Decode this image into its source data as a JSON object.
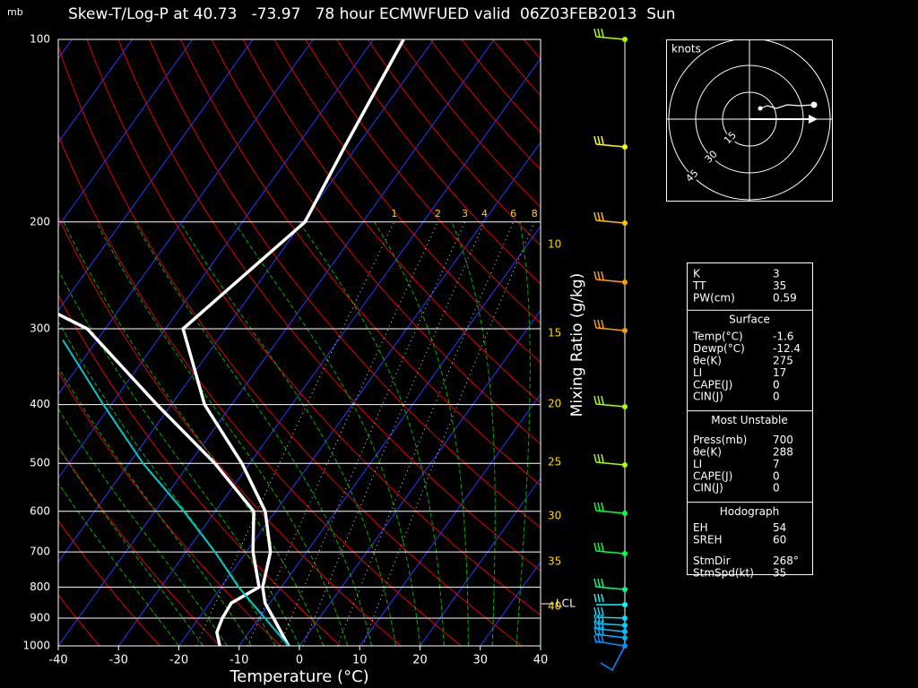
{
  "chart_data": {
    "type": "skewt",
    "title": "Skew-T/Log-P at 40.73   -73.97   78 hour ECMWFUED valid  06Z03FEB2013  Sun",
    "y_unit": "mb",
    "xlabel": "Temperature (°C)",
    "right_label": "Mixing Ratio (g/kg)",
    "xlim": [
      -40,
      40
    ],
    "xticks": [
      -40,
      -30,
      -20,
      -10,
      0,
      10,
      20,
      30,
      40
    ],
    "ylim": [
      1000,
      100
    ],
    "yticks": [
      1000,
      900,
      800,
      700,
      600,
      500,
      400,
      300,
      200,
      100
    ],
    "log_y": true,
    "grid": true,
    "mixing_ratios": [
      1,
      2,
      3,
      4,
      6,
      8
    ],
    "side_labels": [
      10,
      15,
      20,
      25,
      30,
      35,
      40
    ],
    "lcl_label": "LCL",
    "series": [
      {
        "color": "#ffffff",
        "pressure": [
          1000,
          900,
          850,
          800,
          700,
          600,
          500,
          400,
          300,
          200,
          150,
          100
        ],
        "temperature": [
          -1.8,
          -7.6,
          -10.8,
          -13.1,
          -16.0,
          -21.7,
          -31.3,
          -44.5,
          -57.1,
          -49.6,
          -52.0,
          -55.0
        ]
      },
      {
        "color": "#ffffff",
        "pressure": [
          1000,
          950,
          900,
          850,
          800,
          700,
          600,
          500,
          400,
          300,
          283
        ],
        "temperature": [
          -13.2,
          -15.3,
          -16.1,
          -16.4,
          -13.7,
          -18.9,
          -23.6,
          -35.8,
          -52.4,
          -73.0,
          -79.9
        ]
      },
      {
        "color": "#00c8c8",
        "pressure": [
          1000,
          800,
          700,
          600,
          500,
          400,
          313
        ],
        "temperature": [
          -1.8,
          -17.1,
          -25.2,
          -35.2,
          -47.7,
          -61.3,
          -75.7
        ]
      }
    ],
    "hodograph": {
      "unit_label": "knots",
      "rings": [
        15,
        30,
        45
      ]
    },
    "indices": {
      "top": {
        "rows": [
          {
            "label": "K",
            "value": 3
          },
          {
            "label": "TT",
            "value": 35
          },
          {
            "label": "PW(cm)",
            "value": 0.59
          }
        ]
      },
      "surface": {
        "title": "Surface",
        "rows": [
          {
            "label": "Temp(°C)",
            "value": -1.6
          },
          {
            "label": "Dewp(°C)",
            "value": -12.4
          },
          {
            "label": "θe(K)",
            "value": 275
          },
          {
            "label": "LI",
            "value": 17
          },
          {
            "label": "CAPE(J)",
            "value": 0
          },
          {
            "label": "CIN(J)",
            "value": 0
          }
        ]
      },
      "most_unstable": {
        "title": "Most Unstable",
        "rows": [
          {
            "label": "Press(mb)",
            "value": 700
          },
          {
            "label": "θe(K)",
            "value": 288
          },
          {
            "label": "LI",
            "value": 7
          },
          {
            "label": "CAPE(J)",
            "value": 0
          },
          {
            "label": "CIN(J)",
            "value": 0
          }
        ]
      },
      "hodograph": {
        "title": "Hodograph",
        "rows": [
          {
            "label": "EH",
            "value": 54
          },
          {
            "label": "SREH",
            "value": 60
          },
          {
            "label": "StmDir",
            "value": "268°"
          },
          {
            "label": "StmSpd(kt)",
            "value": 35
          }
        ]
      }
    }
  }
}
